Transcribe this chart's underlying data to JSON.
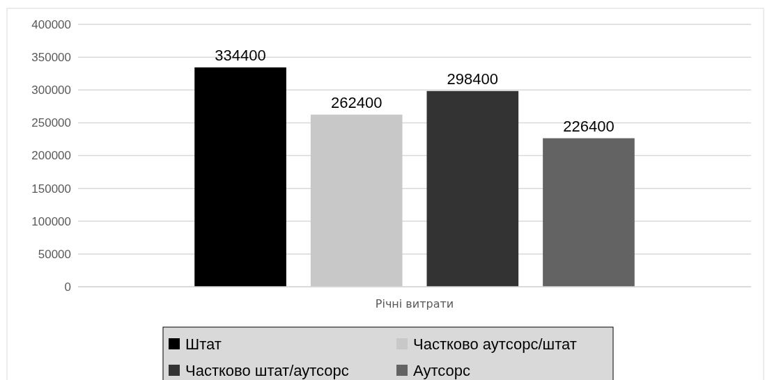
{
  "chart_data": {
    "type": "bar",
    "categories": [
      "Річні витрати"
    ],
    "series": [
      {
        "name": "Штат",
        "color": "#000000",
        "values": [
          334400
        ]
      },
      {
        "name": "Частково аутсорс/штат",
        "color": "#c8c8c8",
        "values": [
          262400
        ]
      },
      {
        "name": "Частково штат/аутсорс",
        "color": "#333333",
        "values": [
          298400
        ]
      },
      {
        "name": "Аутсорс",
        "color": "#636363",
        "values": [
          226400
        ]
      }
    ],
    "ylim": [
      0,
      400000
    ],
    "yticks": [
      0,
      50000,
      100000,
      150000,
      200000,
      250000,
      300000,
      350000,
      400000
    ],
    "grid": "y",
    "data_labels": true,
    "legend": "bottom"
  }
}
